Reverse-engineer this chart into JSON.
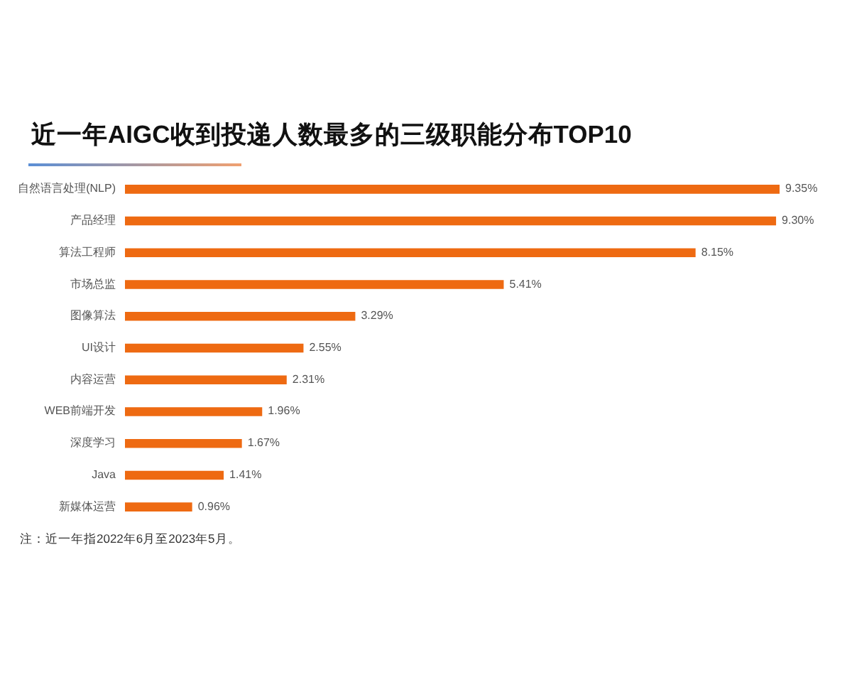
{
  "chart_data": {
    "type": "bar",
    "orientation": "horizontal",
    "title": "近一年AIGC收到投递人数最多的三级职能分布TOP10",
    "categories": [
      "自然语言处理(NLP)",
      "产品经理",
      "算法工程师",
      "市场总监",
      "图像算法",
      "UI设计",
      "内容运营",
      "WEB前端开发",
      "深度学习",
      "Java",
      "新媒体运营"
    ],
    "values": [
      9.35,
      9.3,
      8.15,
      5.41,
      3.29,
      2.55,
      2.31,
      1.96,
      1.67,
      1.41,
      0.96
    ],
    "value_labels": [
      "9.35%",
      "9.30%",
      "8.15%",
      "5.41%",
      "3.29%",
      "2.55%",
      "2.31%",
      "1.96%",
      "1.67%",
      "1.41%",
      "0.96%"
    ],
    "color": "#ee6a12",
    "annotations": [
      "注：近一年指2022年6月至2023年5月。"
    ]
  }
}
